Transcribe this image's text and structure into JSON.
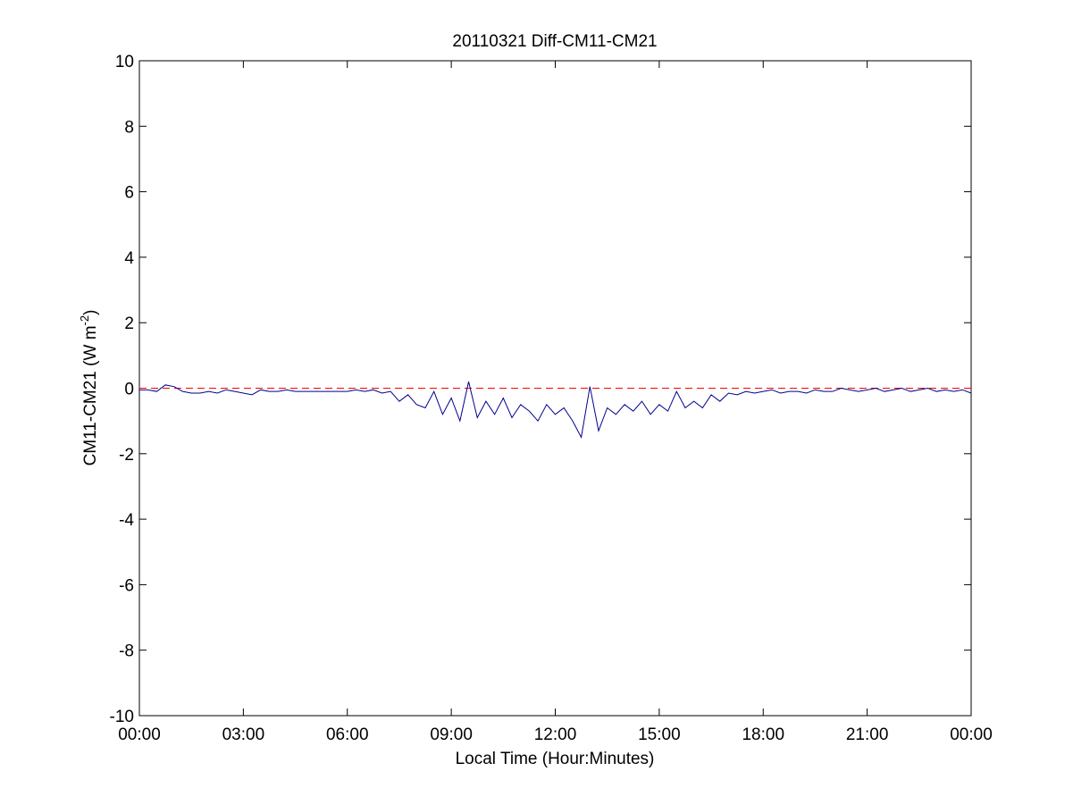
{
  "chart_data": {
    "type": "line",
    "title": "20110321 Diff-CM11-CM21",
    "xlabel": "Local Time (Hour:Minutes)",
    "ylabel": [
      "CM11-CM21 (W m",
      "-2",
      ")"
    ],
    "x": [
      0,
      0.25,
      0.5,
      0.75,
      1,
      1.25,
      1.5,
      1.75,
      2,
      2.25,
      2.5,
      2.75,
      3,
      3.25,
      3.5,
      3.75,
      4,
      4.25,
      4.5,
      4.75,
      5,
      5.25,
      5.5,
      5.75,
      6,
      6.25,
      6.5,
      6.75,
      7,
      7.25,
      7.5,
      7.75,
      8,
      8.25,
      8.5,
      8.75,
      9,
      9.25,
      9.5,
      9.75,
      10,
      10.25,
      10.5,
      10.75,
      11,
      11.25,
      11.5,
      11.75,
      12,
      12.25,
      12.5,
      12.75,
      13,
      13.25,
      13.5,
      13.75,
      14,
      14.25,
      14.5,
      14.75,
      15,
      15.25,
      15.5,
      15.75,
      16,
      16.25,
      16.5,
      16.75,
      17,
      17.25,
      17.5,
      17.75,
      18,
      18.25,
      18.5,
      18.75,
      19,
      19.25,
      19.5,
      19.75,
      20,
      20.25,
      20.5,
      20.75,
      21,
      21.25,
      21.5,
      21.75,
      22,
      22.25,
      22.5,
      22.75,
      23,
      23.25,
      23.5,
      23.75,
      24
    ],
    "series": [
      {
        "color": "#00008b",
        "values": [
          -0.05,
          -0.05,
          -0.1,
          0.1,
          0.05,
          -0.1,
          -0.15,
          -0.15,
          -0.1,
          -0.15,
          -0.05,
          -0.1,
          -0.15,
          -0.2,
          -0.05,
          -0.1,
          -0.1,
          -0.05,
          -0.1,
          -0.1,
          -0.1,
          -0.1,
          -0.1,
          -0.1,
          -0.1,
          -0.05,
          -0.1,
          -0.05,
          -0.15,
          -0.1,
          -0.4,
          -0.2,
          -0.5,
          -0.6,
          -0.1,
          -0.8,
          -0.3,
          -1.0,
          0.2,
          -0.9,
          -0.4,
          -0.8,
          -0.3,
          -0.9,
          -0.5,
          -0.7,
          -1.0,
          -0.5,
          -0.8,
          -0.6,
          -1.0,
          -1.5,
          0.05,
          -1.3,
          -0.6,
          -0.8,
          -0.5,
          -0.7,
          -0.4,
          -0.8,
          -0.5,
          -0.7,
          -0.1,
          -0.6,
          -0.4,
          -0.6,
          -0.2,
          -0.4,
          -0.15,
          -0.2,
          -0.1,
          -0.15,
          -0.1,
          -0.05,
          -0.15,
          -0.1,
          -0.1,
          -0.15,
          -0.05,
          -0.1,
          -0.1,
          0,
          -0.05,
          -0.1,
          -0.05,
          0,
          -0.1,
          -0.05,
          0,
          -0.1,
          -0.05,
          0,
          -0.1,
          -0.05,
          -0.1,
          -0.05,
          -0.15
        ]
      }
    ],
    "reference_line": {
      "value": 0,
      "color": "#ff0000",
      "dashed": true
    },
    "xlim": [
      0,
      24
    ],
    "xticks": [
      {
        "value": 0,
        "label": "00:00"
      },
      {
        "value": 3,
        "label": "03:00"
      },
      {
        "value": 6,
        "label": "06:00"
      },
      {
        "value": 9,
        "label": "09:00"
      },
      {
        "value": 12,
        "label": "12:00"
      },
      {
        "value": 15,
        "label": "15:00"
      },
      {
        "value": 18,
        "label": "18:00"
      },
      {
        "value": 21,
        "label": "21:00"
      },
      {
        "value": 24,
        "label": "00:00"
      }
    ],
    "ylim": [
      -10,
      10
    ],
    "yticks": [
      -10,
      -8,
      -6,
      -4,
      -2,
      0,
      2,
      4,
      6,
      8,
      10
    ],
    "grid": false
  }
}
